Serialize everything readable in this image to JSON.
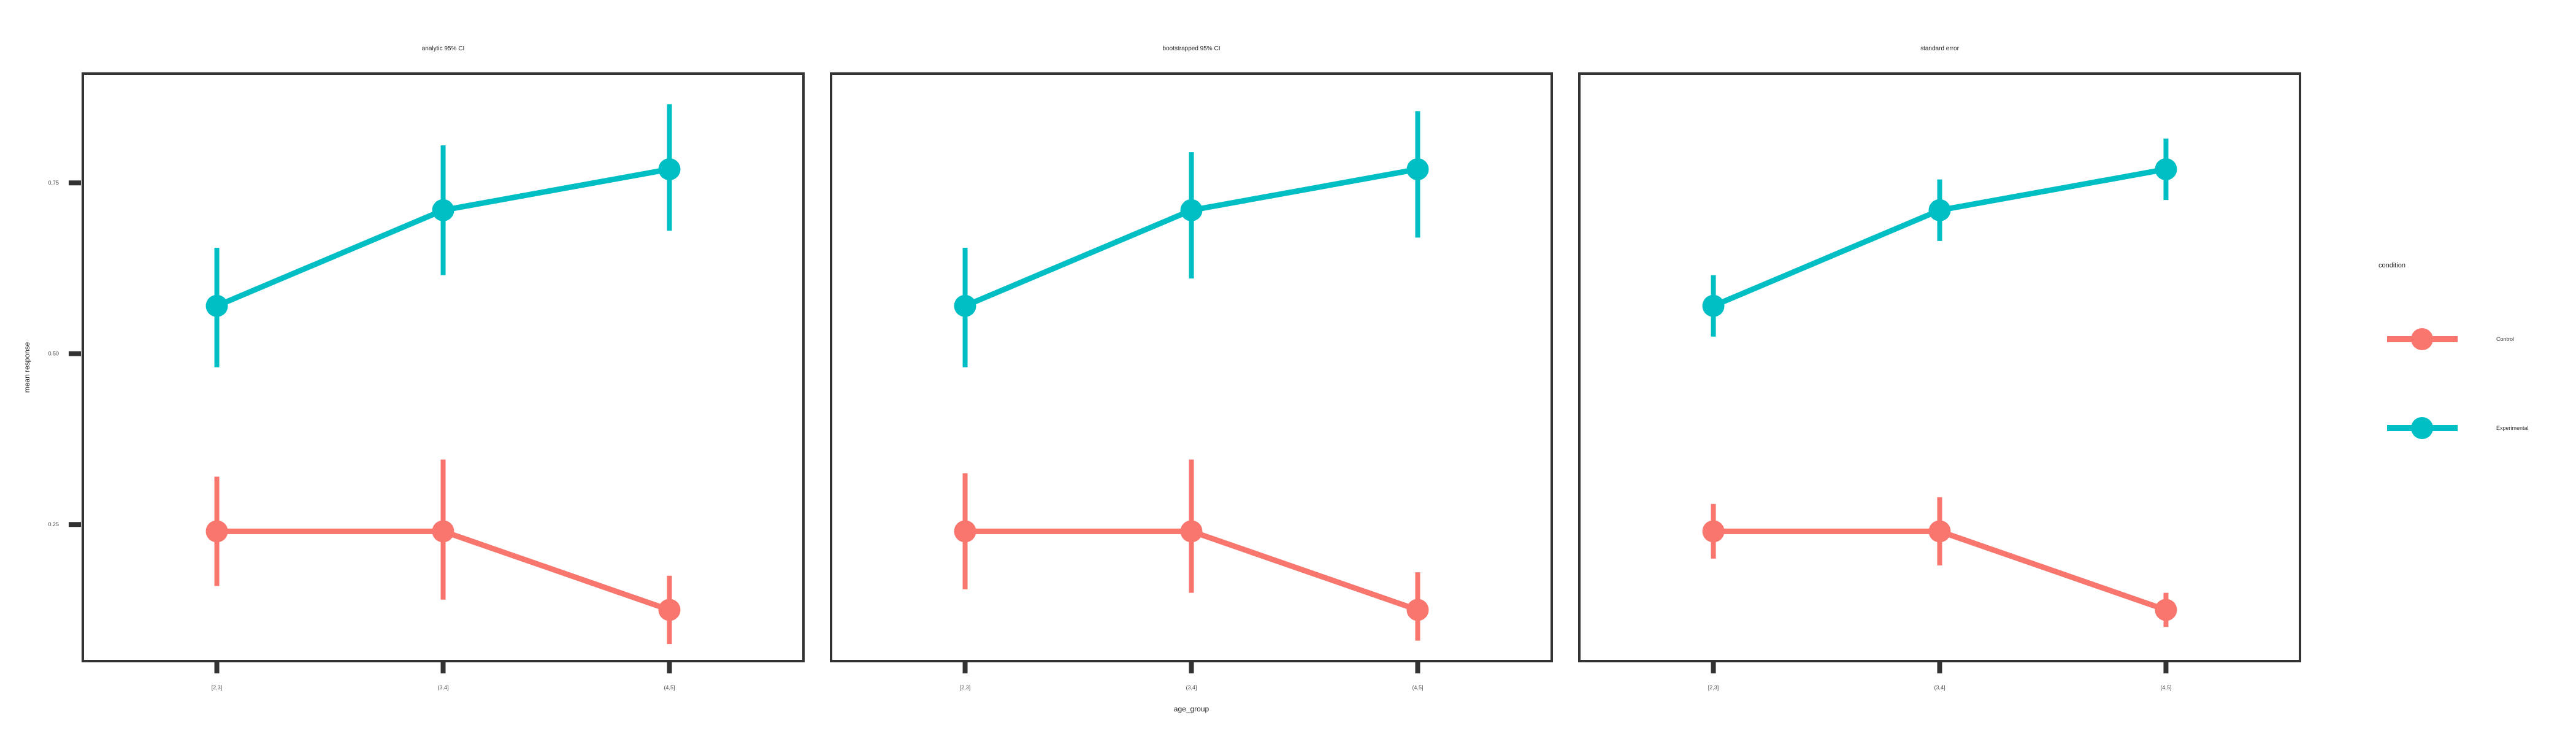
{
  "chart_data": {
    "type": "line",
    "x_axis_label": "age_group",
    "y_axis_label": "mean response",
    "categories": [
      "[2,3]",
      "(3,4]",
      "(4,5]"
    ],
    "y_ticks": [
      0.25,
      0.5,
      0.75
    ],
    "y_tick_labels": [
      "0.25",
      "0.50",
      "0.75"
    ],
    "ylim": [
      0.05,
      0.91
    ],
    "grid": false,
    "legend": {
      "title": "condition",
      "placement": "right",
      "entries": [
        "Control",
        "Experimental"
      ]
    },
    "colors": {
      "Control": "#F8766D",
      "Experimental": "#00BFC4"
    },
    "panels": [
      {
        "title": "analytic 95% CI",
        "series": [
          {
            "name": "Control",
            "values": [
              0.24,
              0.24,
              0.125
            ],
            "lower": [
              0.16,
              0.14,
              0.075
            ],
            "upper": [
              0.32,
              0.345,
              0.175
            ]
          },
          {
            "name": "Experimental",
            "values": [
              0.57,
              0.71,
              0.77
            ],
            "lower": [
              0.48,
              0.615,
              0.68
            ],
            "upper": [
              0.655,
              0.805,
              0.865
            ]
          }
        ]
      },
      {
        "title": "bootstrapped 95% CI",
        "series": [
          {
            "name": "Control",
            "values": [
              0.24,
              0.24,
              0.125
            ],
            "lower": [
              0.155,
              0.15,
              0.08
            ],
            "upper": [
              0.325,
              0.345,
              0.18
            ]
          },
          {
            "name": "Experimental",
            "values": [
              0.57,
              0.71,
              0.77
            ],
            "lower": [
              0.48,
              0.61,
              0.67
            ],
            "upper": [
              0.655,
              0.795,
              0.855
            ]
          }
        ]
      },
      {
        "title": "standard error",
        "series": [
          {
            "name": "Control",
            "values": [
              0.24,
              0.24,
              0.125
            ],
            "lower": [
              0.2,
              0.19,
              0.1
            ],
            "upper": [
              0.28,
              0.29,
              0.15
            ]
          },
          {
            "name": "Experimental",
            "values": [
              0.57,
              0.71,
              0.77
            ],
            "lower": [
              0.525,
              0.665,
              0.725
            ],
            "upper": [
              0.615,
              0.755,
              0.815
            ]
          }
        ]
      }
    ]
  }
}
